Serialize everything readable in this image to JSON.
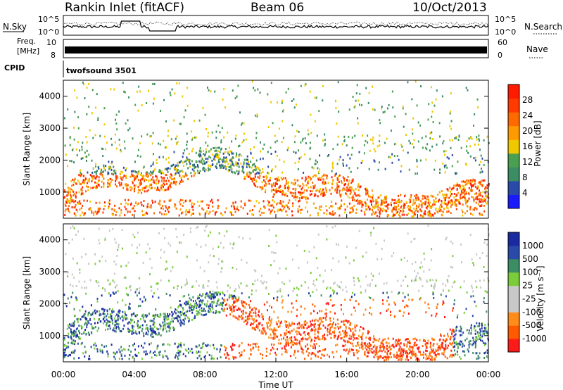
{
  "header": {
    "station": "Rankin Inlet (fitACF)",
    "beam": "Beam 06",
    "date": "10/Oct/2013"
  },
  "noise_panel": {
    "left_label": "N.Sky",
    "right_label": "N.Search",
    "left_ticks": [
      "10^5",
      "10^0"
    ],
    "right_ticks": [
      "10^5",
      "10^0"
    ]
  },
  "freq_panel": {
    "left_label_1": "Freq.",
    "left_label_2": "[MHz]",
    "right_label": "Nave",
    "left_ticks": [
      "10",
      "8"
    ],
    "right_ticks": [
      "60",
      "0"
    ]
  },
  "cpid": {
    "label": "CPID",
    "value": "twofsound 3501"
  },
  "colors": {
    "power": [
      "#1a1aff",
      "#2a4aaa",
      "#3c8c64",
      "#4aa050",
      "#f0c800",
      "#ff9a00",
      "#ff6a00",
      "#ff3a00",
      "#ff1a00"
    ],
    "velocity": [
      "#ff1a1a",
      "#ff5a00",
      "#ff8c1a",
      "#c8c8c8",
      "#c8c8c8",
      "#7acc3a",
      "#3c8c64",
      "#2a4aaa",
      "#1a2aa0"
    ]
  },
  "chart_data": [
    {
      "type": "heatmap",
      "panel": "power",
      "ylabel": "Slant Range [km]",
      "colorbar_label": "Power [dB]",
      "colorbar_ticks": [
        "28",
        "24",
        "20",
        "16",
        "12",
        "8",
        "4"
      ],
      "yticks": [
        "4000",
        "3000",
        "2000",
        "1000"
      ],
      "ylim": [
        180,
        4500
      ],
      "xlim_hours": [
        0,
        24
      ]
    },
    {
      "type": "heatmap",
      "panel": "velocity",
      "ylabel": "Slant Range [km]",
      "colorbar_label": "Velocity [m s⁻¹]",
      "colorbar_ticks": [
        "1000",
        "500",
        "100",
        "25",
        "-25",
        "-100",
        "-500",
        "-1000"
      ],
      "yticks": [
        "4000",
        "3000",
        "2000",
        "1000"
      ],
      "ylim": [
        180,
        4500
      ],
      "xlim_hours": [
        0,
        24
      ],
      "xticks": [
        "00:00",
        "04:00",
        "08:00",
        "12:00",
        "16:00",
        "20:00",
        "00:00"
      ],
      "xlabel": "Time UT"
    }
  ]
}
